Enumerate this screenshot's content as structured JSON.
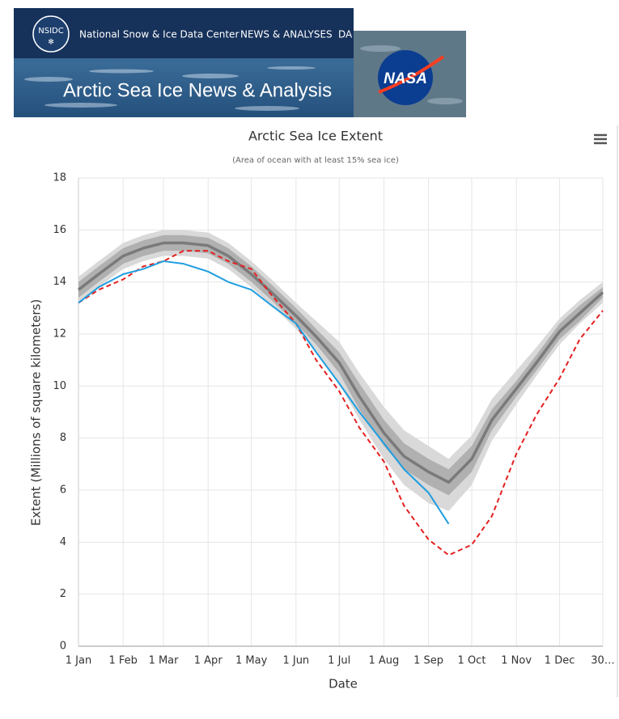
{
  "header": {
    "logo": "NSIDC",
    "org": "National Snow & Ice Data Center",
    "nav": [
      "NEWS & ANALYSES",
      "DA"
    ],
    "banner_title": "Arctic Sea Ice News & Analysis",
    "partner": "NASA"
  },
  "chart_data": {
    "type": "line",
    "title": "Arctic Sea Ice Extent",
    "subtitle": "(Area of ocean with at least 15% sea ice)",
    "x_label": "Date",
    "y_label": "Extent (Millions of square kilometers)",
    "x": [
      1,
      15,
      32,
      46,
      60,
      74,
      91,
      105,
      121,
      135,
      152,
      166,
      182,
      196,
      213,
      227,
      244,
      258,
      274,
      288,
      305,
      319,
      335,
      349,
      365
    ],
    "xlim": [
      1,
      365
    ],
    "xticks": [
      {
        "value": 1,
        "label": "1 Jan"
      },
      {
        "value": 32,
        "label": "1 Feb"
      },
      {
        "value": 60,
        "label": "1 Mar"
      },
      {
        "value": 91,
        "label": "1 Apr"
      },
      {
        "value": 121,
        "label": "1 May"
      },
      {
        "value": 152,
        "label": "1 Jun"
      },
      {
        "value": 182,
        "label": "1 Jul"
      },
      {
        "value": 213,
        "label": "1 Aug"
      },
      {
        "value": 244,
        "label": "1 Sep"
      },
      {
        "value": 274,
        "label": "1 Oct"
      },
      {
        "value": 305,
        "label": "1 Nov"
      },
      {
        "value": 335,
        "label": "1 Dec"
      },
      {
        "value": 365,
        "label": "30…"
      }
    ],
    "ylim": [
      0,
      18
    ],
    "yticks": [
      0,
      2,
      4,
      6,
      8,
      10,
      12,
      14,
      16,
      18
    ],
    "grid": true,
    "bands": [
      {
        "color": "#d9d9d9",
        "low": [
          13.2,
          13.8,
          14.5,
          14.8,
          15.0,
          15.0,
          14.9,
          14.5,
          13.8,
          13.1,
          12.2,
          11.3,
          10.1,
          8.7,
          7.2,
          6.2,
          5.5,
          5.2,
          6.2,
          7.9,
          9.3,
          10.4,
          11.6,
          12.4,
          13.2
        ],
        "high": [
          14.2,
          14.8,
          15.5,
          15.8,
          16.0,
          16.0,
          15.9,
          15.5,
          14.8,
          14.1,
          13.2,
          12.5,
          11.7,
          10.5,
          9.2,
          8.3,
          7.7,
          7.2,
          8.1,
          9.5,
          10.6,
          11.5,
          12.6,
          13.3,
          14.0
        ]
      },
      {
        "color": "#b0b0b0",
        "low": [
          13.4,
          14.0,
          14.7,
          15.0,
          15.2,
          15.2,
          15.1,
          14.7,
          14.0,
          13.3,
          12.4,
          11.6,
          10.5,
          9.1,
          7.7,
          6.8,
          6.2,
          5.8,
          6.7,
          8.3,
          9.6,
          10.6,
          11.8,
          12.5,
          13.4
        ],
        "high": [
          14.0,
          14.6,
          15.3,
          15.6,
          15.8,
          15.8,
          15.7,
          15.3,
          14.6,
          13.9,
          13.0,
          12.2,
          11.3,
          10.1,
          8.7,
          7.8,
          7.2,
          6.8,
          7.7,
          9.1,
          10.2,
          11.2,
          12.4,
          13.1,
          13.8
        ]
      }
    ],
    "series": [
      {
        "color": "#7a7a7a",
        "style": "thick",
        "values": [
          13.7,
          14.3,
          15.0,
          15.3,
          15.5,
          15.5,
          15.4,
          15.0,
          14.3,
          13.6,
          12.7,
          11.9,
          10.9,
          9.6,
          8.2,
          7.3,
          6.7,
          6.3,
          7.2,
          8.7,
          9.9,
          10.9,
          12.1,
          12.8,
          13.6
        ]
      },
      {
        "color": "#e4201f",
        "style": "dashed",
        "values": [
          13.2,
          13.7,
          14.1,
          14.6,
          14.8,
          15.2,
          15.2,
          14.8,
          14.5,
          13.5,
          12.4,
          11.0,
          9.8,
          8.4,
          7.1,
          5.4,
          4.1,
          3.5,
          3.9,
          5.0,
          7.4,
          8.9,
          10.3,
          11.8,
          12.9
        ]
      },
      {
        "color": "#1f9ee0",
        "style": "solid",
        "values": [
          13.2,
          13.8,
          14.3,
          14.5,
          14.8,
          14.7,
          14.4,
          14.0,
          13.7,
          13.1,
          12.4,
          11.3,
          10.1,
          9.0,
          7.8,
          6.8,
          5.9,
          4.7,
          null,
          null,
          null,
          null,
          null,
          null,
          null
        ]
      }
    ]
  }
}
